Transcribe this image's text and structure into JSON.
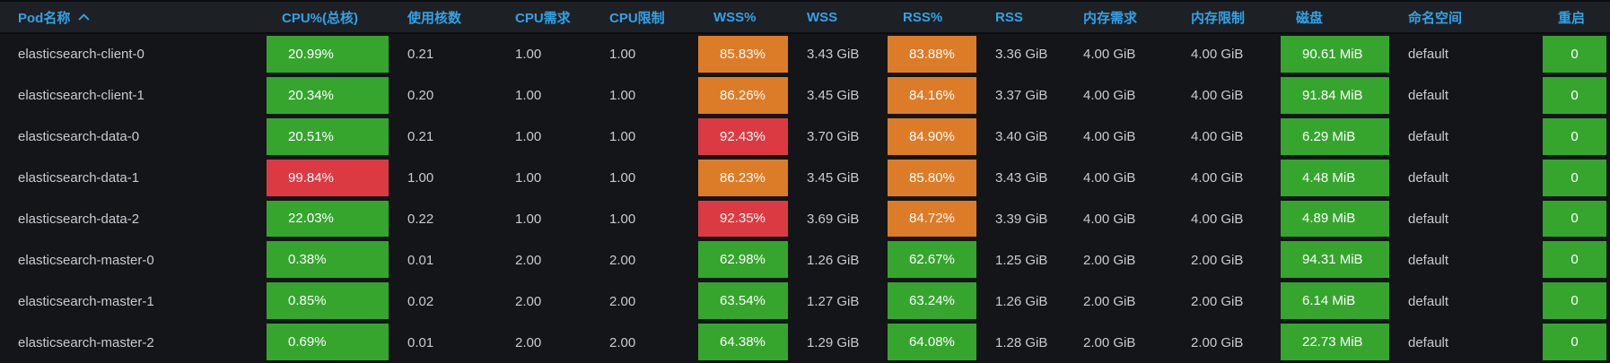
{
  "colors": {
    "green": "#36a52e",
    "orange": "#dd7c28",
    "red": "#dc3a43",
    "header_blue": "#33a2e5",
    "header_bg": "#1d2025",
    "body_bg": "#131519",
    "text": "#c7cbd1",
    "box_text": "#ffffff"
  },
  "table": {
    "sorted_column": "Pod名称",
    "sort_direction": "ascending",
    "columns": [
      {
        "id": "pod_name",
        "label": "Pod名称",
        "sorted": true
      },
      {
        "id": "cpu_pct",
        "label": "CPU%(总核)",
        "sorted": false
      },
      {
        "id": "cpu_cores",
        "label": "使用核数",
        "sorted": false
      },
      {
        "id": "cpu_request",
        "label": "CPU需求",
        "sorted": false
      },
      {
        "id": "cpu_limit",
        "label": "CPU限制",
        "sorted": false
      },
      {
        "id": "wss_pct",
        "label": "WSS%",
        "sorted": false
      },
      {
        "id": "wss",
        "label": "WSS",
        "sorted": false
      },
      {
        "id": "rss_pct",
        "label": "RSS%",
        "sorted": false
      },
      {
        "id": "rss",
        "label": "RSS",
        "sorted": false
      },
      {
        "id": "mem_request",
        "label": "内存需求",
        "sorted": false
      },
      {
        "id": "mem_limit",
        "label": "内存限制",
        "sorted": false
      },
      {
        "id": "disk",
        "label": "磁盘",
        "sorted": false
      },
      {
        "id": "namespace",
        "label": "命名空间",
        "sorted": false
      },
      {
        "id": "restarts",
        "label": "重启",
        "sorted": false
      }
    ],
    "rows": [
      {
        "cells": [
          {
            "text": "elasticsearch-client-0"
          },
          {
            "text": "20.99%",
            "color": "green"
          },
          {
            "text": "0.21"
          },
          {
            "text": "1.00"
          },
          {
            "text": "1.00"
          },
          {
            "text": "85.83%",
            "color": "orange"
          },
          {
            "text": "3.43 GiB"
          },
          {
            "text": "83.88%",
            "color": "orange"
          },
          {
            "text": "3.36 GiB"
          },
          {
            "text": "4.00 GiB"
          },
          {
            "text": "4.00 GiB"
          },
          {
            "text": "90.61 MiB",
            "color": "green"
          },
          {
            "text": "default"
          },
          {
            "text": "0",
            "color": "green"
          }
        ]
      },
      {
        "cells": [
          {
            "text": "elasticsearch-client-1"
          },
          {
            "text": "20.34%",
            "color": "green"
          },
          {
            "text": "0.20"
          },
          {
            "text": "1.00"
          },
          {
            "text": "1.00"
          },
          {
            "text": "86.26%",
            "color": "orange"
          },
          {
            "text": "3.45 GiB"
          },
          {
            "text": "84.16%",
            "color": "orange"
          },
          {
            "text": "3.37 GiB"
          },
          {
            "text": "4.00 GiB"
          },
          {
            "text": "4.00 GiB"
          },
          {
            "text": "91.84 MiB",
            "color": "green"
          },
          {
            "text": "default"
          },
          {
            "text": "0",
            "color": "green"
          }
        ]
      },
      {
        "cells": [
          {
            "text": "elasticsearch-data-0"
          },
          {
            "text": "20.51%",
            "color": "green"
          },
          {
            "text": "0.21"
          },
          {
            "text": "1.00"
          },
          {
            "text": "1.00"
          },
          {
            "text": "92.43%",
            "color": "red"
          },
          {
            "text": "3.70 GiB"
          },
          {
            "text": "84.90%",
            "color": "orange"
          },
          {
            "text": "3.40 GiB"
          },
          {
            "text": "4.00 GiB"
          },
          {
            "text": "4.00 GiB"
          },
          {
            "text": "6.29 MiB",
            "color": "green"
          },
          {
            "text": "default"
          },
          {
            "text": "0",
            "color": "green"
          }
        ]
      },
      {
        "cells": [
          {
            "text": "elasticsearch-data-1"
          },
          {
            "text": "99.84%",
            "color": "red"
          },
          {
            "text": "1.00"
          },
          {
            "text": "1.00"
          },
          {
            "text": "1.00"
          },
          {
            "text": "86.23%",
            "color": "orange"
          },
          {
            "text": "3.45 GiB"
          },
          {
            "text": "85.80%",
            "color": "orange"
          },
          {
            "text": "3.43 GiB"
          },
          {
            "text": "4.00 GiB"
          },
          {
            "text": "4.00 GiB"
          },
          {
            "text": "4.48 MiB",
            "color": "green"
          },
          {
            "text": "default"
          },
          {
            "text": "0",
            "color": "green"
          }
        ]
      },
      {
        "cells": [
          {
            "text": "elasticsearch-data-2"
          },
          {
            "text": "22.03%",
            "color": "green"
          },
          {
            "text": "0.22"
          },
          {
            "text": "1.00"
          },
          {
            "text": "1.00"
          },
          {
            "text": "92.35%",
            "color": "red"
          },
          {
            "text": "3.69 GiB"
          },
          {
            "text": "84.72%",
            "color": "orange"
          },
          {
            "text": "3.39 GiB"
          },
          {
            "text": "4.00 GiB"
          },
          {
            "text": "4.00 GiB"
          },
          {
            "text": "4.89 MiB",
            "color": "green"
          },
          {
            "text": "default"
          },
          {
            "text": "0",
            "color": "green"
          }
        ]
      },
      {
        "cells": [
          {
            "text": "elasticsearch-master-0"
          },
          {
            "text": "0.38%",
            "color": "green"
          },
          {
            "text": "0.01"
          },
          {
            "text": "2.00"
          },
          {
            "text": "2.00"
          },
          {
            "text": "62.98%",
            "color": "green"
          },
          {
            "text": "1.26 GiB"
          },
          {
            "text": "62.67%",
            "color": "green"
          },
          {
            "text": "1.25 GiB"
          },
          {
            "text": "2.00 GiB"
          },
          {
            "text": "2.00 GiB"
          },
          {
            "text": "94.31 MiB",
            "color": "green"
          },
          {
            "text": "default"
          },
          {
            "text": "0",
            "color": "green"
          }
        ]
      },
      {
        "cells": [
          {
            "text": "elasticsearch-master-1"
          },
          {
            "text": "0.85%",
            "color": "green"
          },
          {
            "text": "0.02"
          },
          {
            "text": "2.00"
          },
          {
            "text": "2.00"
          },
          {
            "text": "63.54%",
            "color": "green"
          },
          {
            "text": "1.27 GiB"
          },
          {
            "text": "63.24%",
            "color": "green"
          },
          {
            "text": "1.26 GiB"
          },
          {
            "text": "2.00 GiB"
          },
          {
            "text": "2.00 GiB"
          },
          {
            "text": "6.14 MiB",
            "color": "green"
          },
          {
            "text": "default"
          },
          {
            "text": "0",
            "color": "green"
          }
        ]
      },
      {
        "cells": [
          {
            "text": "elasticsearch-master-2"
          },
          {
            "text": "0.69%",
            "color": "green"
          },
          {
            "text": "0.01"
          },
          {
            "text": "2.00"
          },
          {
            "text": "2.00"
          },
          {
            "text": "64.38%",
            "color": "green"
          },
          {
            "text": "1.29 GiB"
          },
          {
            "text": "64.08%",
            "color": "green"
          },
          {
            "text": "1.28 GiB"
          },
          {
            "text": "2.00 GiB"
          },
          {
            "text": "2.00 GiB"
          },
          {
            "text": "22.73 MiB",
            "color": "green"
          },
          {
            "text": "default"
          },
          {
            "text": "0",
            "color": "green"
          }
        ]
      }
    ]
  }
}
